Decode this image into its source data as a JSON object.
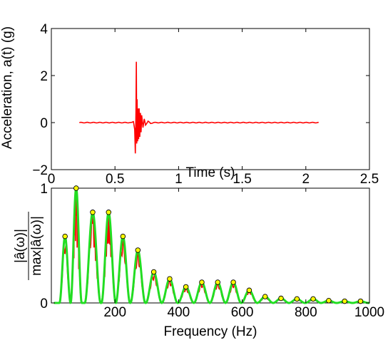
{
  "chart_data": [
    {
      "type": "line",
      "xlabel": "Time (s)",
      "ylabel": "Acceleration, a(t) (g)",
      "xlim": [
        0,
        2.5
      ],
      "ylim": [
        -2,
        4
      ],
      "xticks": [
        0,
        0.5,
        1,
        1.5,
        2,
        2.5
      ],
      "xtick_labels": [
        "0",
        "0.5",
        "1",
        "1.5",
        "2",
        "2.5"
      ],
      "yticks": [
        -2,
        0,
        2,
        4
      ],
      "ytick_labels": [
        "−2",
        "0",
        "2",
        "4"
      ],
      "grid": false,
      "series": [
        {
          "color": "#ff0000",
          "x": [
            0.22,
            0.62,
            0.645,
            0.655,
            0.66,
            0.665,
            0.668,
            0.671,
            0.674,
            0.678,
            0.682,
            0.686,
            0.69,
            0.695,
            0.7,
            0.705,
            0.71,
            0.72,
            0.73,
            0.74,
            0.76,
            0.78,
            0.8,
            2.1
          ],
          "y": [
            0,
            0,
            0.05,
            -0.3,
            -1.3,
            0.5,
            2.6,
            -0.9,
            1.0,
            -0.8,
            0.6,
            -0.7,
            0.6,
            -0.6,
            0.4,
            -0.4,
            0.3,
            -0.2,
            0.15,
            -0.1,
            0.06,
            -0.04,
            0,
            0
          ]
        }
      ]
    },
    {
      "type": "line",
      "xlabel": "Frequency (Hz)",
      "ylabel_numerator": "|â(ω)|",
      "ylabel_denominator": "max|â(ω)|",
      "xlim": [
        0,
        1000
      ],
      "ylim": [
        0,
        1
      ],
      "xticks": [
        200,
        400,
        600,
        800,
        1000
      ],
      "xtick_labels": [
        "200",
        "400",
        "600",
        "800",
        "1000"
      ],
      "yticks": [
        0,
        1
      ],
      "ytick_labels": [
        "0",
        "1"
      ],
      "grid": false,
      "series": [
        {
          "color": "#ff0000",
          "style": "spectrum"
        },
        {
          "color": "#22dd22",
          "style": "envelope"
        }
      ],
      "peaks": {
        "color": "#ffff00",
        "x": [
          43,
          78,
          130,
          180,
          225,
          272,
          322,
          372,
          423,
          473,
          523,
          572,
          622,
          672,
          722,
          772,
          823,
          872,
          922,
          972
        ],
        "y": [
          0.58,
          1.0,
          0.79,
          0.79,
          0.58,
          0.46,
          0.27,
          0.21,
          0.14,
          0.18,
          0.18,
          0.18,
          0.11,
          0.055,
          0.04,
          0.035,
          0.035,
          0.02,
          0.015,
          0.015
        ]
      }
    }
  ]
}
